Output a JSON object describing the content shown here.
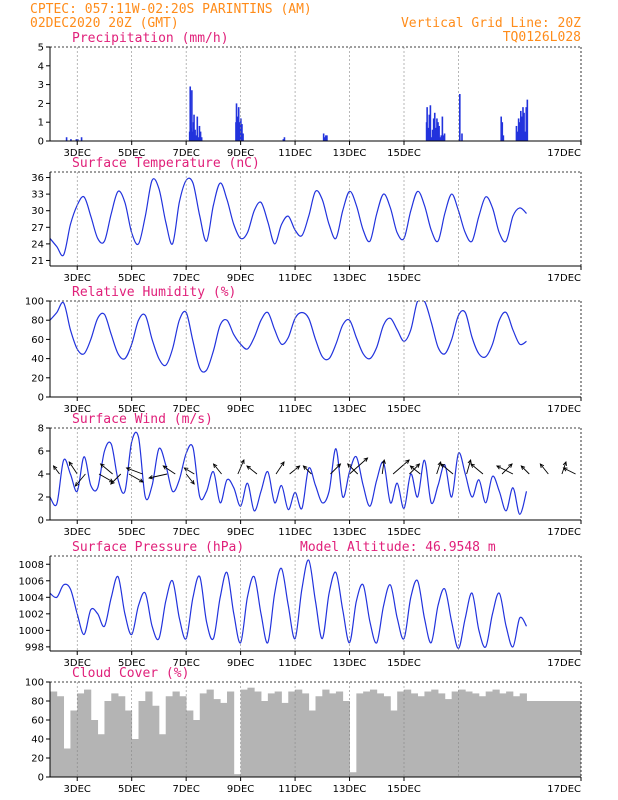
{
  "header": {
    "line1": "CPTEC:   057:11W-02:20S   PARINTINS (AM)",
    "line2": "02DEC2020 20Z (GMT)",
    "grid_note": "Vertical Grid Line: 20Z",
    "code": "TQ0126L028"
  },
  "colors": {
    "header": "#ff8c1a",
    "panel_title": "#e0207a",
    "series": "#2233dd",
    "cloud": "#b4b4b4",
    "grid": "#888888"
  },
  "chart_data": [
    {
      "type": "bar",
      "title": "Precipitation (mm/h)",
      "x_ticks": [
        "3DEC",
        "5DEC",
        "7DEC",
        "9DEC",
        "11DEC",
        "13DEC",
        "15DEC",
        "17DEC"
      ],
      "ylim": [
        0,
        5
      ],
      "yticks": [
        0,
        1,
        2,
        3,
        4,
        5
      ],
      "series": [
        {
          "x": [
            0.58,
            0.74,
            0.94,
            0.99,
            1.13
          ],
          "values": [
            0.2,
            0.1,
            0.1,
            0.1,
            0.2
          ]
        },
        {
          "x": [
            5.1,
            5.12,
            5.14,
            5.16,
            5.18,
            5.2,
            5.22,
            5.24,
            5.26,
            5.3,
            5.34,
            5.38,
            5.42,
            5.46,
            5.5,
            5.54
          ],
          "values": [
            0.5,
            2.9,
            0.7,
            0.6,
            2.7,
            0.4,
            0.5,
            1.0,
            1.4,
            0.6,
            0.3,
            1.3,
            0.2,
            0.8,
            0.5,
            0.2
          ]
        },
        {
          "x": [
            6.8,
            6.82,
            6.84,
            6.86,
            6.9,
            6.94,
            6.98,
            7.02,
            7.06
          ],
          "values": [
            1.0,
            2.0,
            0.6,
            1.3,
            1.8,
            1.0,
            1.2,
            0.9,
            0.4
          ]
        },
        {
          "x": [
            8.54,
            8.58
          ],
          "values": [
            0.1,
            0.2
          ]
        },
        {
          "x": [
            10.02,
            10.06,
            10.1,
            10.14
          ],
          "values": [
            0.4,
            0.2,
            0.3,
            0.3
          ]
        },
        {
          "x": [
            13.8,
            13.82,
            13.86,
            13.9,
            13.94,
            13.98,
            14.02,
            14.06,
            14.1,
            14.14,
            14.18,
            14.22,
            14.26,
            14.3,
            14.34,
            14.38,
            14.42,
            14.46
          ],
          "values": [
            1.0,
            1.8,
            0.7,
            1.4,
            1.9,
            0.2,
            0.6,
            1.2,
            1.5,
            0.7,
            1.2,
            1.0,
            0.8,
            0.2,
            0.3,
            1.3,
            0.3,
            0.4
          ]
        },
        {
          "x": [
            15.02,
            15.1
          ],
          "values": [
            2.5,
            0.4
          ]
        },
        {
          "x": [
            16.54,
            16.58,
            16.62
          ],
          "values": [
            1.3,
            1.0,
            0.3
          ]
        },
        {
          "x": [
            17.1,
            17.14,
            17.18,
            17.22,
            17.26,
            17.3,
            17.34,
            17.38,
            17.42,
            17.46,
            17.5
          ],
          "values": [
            0.8,
            0.5,
            1.2,
            1.0,
            1.6,
            1.3,
            1.8,
            1.5,
            0.5,
            1.8,
            2.2
          ]
        }
      ]
    },
    {
      "type": "line",
      "title": "Surface Temperature (nC)",
      "x_ticks": [
        "3DEC",
        "5DEC",
        "7DEC",
        "9DEC",
        "11DEC",
        "13DEC",
        "15DEC",
        "17DEC"
      ],
      "ylim": [
        20,
        37
      ],
      "yticks": [
        21,
        24,
        27,
        30,
        33,
        36
      ],
      "x": [
        0,
        0.25,
        0.5,
        0.75,
        1,
        1.25,
        1.5,
        1.75,
        2,
        2.25,
        2.5,
        2.75,
        3,
        3.25,
        3.5,
        3.75,
        4,
        4.25,
        4.5,
        4.75,
        5,
        5.25,
        5.5,
        5.75,
        6,
        6.25,
        6.5,
        6.75,
        7,
        7.25,
        7.5,
        7.75,
        8,
        8.25,
        8.5,
        8.75,
        9,
        9.25,
        9.5,
        9.75,
        10,
        10.25,
        10.5,
        10.75,
        11,
        11.25,
        11.5,
        11.75,
        12,
        12.25,
        12.5,
        12.75,
        13,
        13.25,
        13.5,
        13.75,
        14,
        14.25,
        14.5,
        14.75,
        15,
        15.25,
        15.5,
        15.75,
        16,
        16.25,
        16.5,
        16.75,
        17,
        17.25,
        17.5
      ],
      "values": [
        25.0,
        23.5,
        22.0,
        27.5,
        31.0,
        32.5,
        29.0,
        25.0,
        24.5,
        29.5,
        33.5,
        31.5,
        26.0,
        24.0,
        29.0,
        35.5,
        34.0,
        28.0,
        24.0,
        31.5,
        35.5,
        35.0,
        29.0,
        24.5,
        31.0,
        35.0,
        32.0,
        27.5,
        25.0,
        26.0,
        30.0,
        31.5,
        28.0,
        24.0,
        27.5,
        29.0,
        26.5,
        25.5,
        29.0,
        33.5,
        32.0,
        27.5,
        25.0,
        30.0,
        33.5,
        31.0,
        26.5,
        24.5,
        29.5,
        33.0,
        30.5,
        26.0,
        25.0,
        30.0,
        33.5,
        31.0,
        26.5,
        24.5,
        29.5,
        33.0,
        30.0,
        26.0,
        24.5,
        29.0,
        32.5,
        30.5,
        26.0,
        24.5,
        29.0,
        30.5,
        29.5
      ]
    },
    {
      "type": "line",
      "title": "Relative Humidity (%)",
      "x_ticks": [
        "3DEC",
        "5DEC",
        "7DEC",
        "9DEC",
        "11DEC",
        "13DEC",
        "15DEC",
        "17DEC"
      ],
      "ylim": [
        0,
        100
      ],
      "yticks": [
        0,
        20,
        40,
        60,
        80,
        100
      ],
      "x": [
        0,
        0.25,
        0.5,
        0.75,
        1,
        1.25,
        1.5,
        1.75,
        2,
        2.25,
        2.5,
        2.75,
        3,
        3.25,
        3.5,
        3.75,
        4,
        4.25,
        4.5,
        4.75,
        5,
        5.25,
        5.5,
        5.75,
        6,
        6.25,
        6.5,
        6.75,
        7,
        7.25,
        7.5,
        7.75,
        8,
        8.25,
        8.5,
        8.75,
        9,
        9.25,
        9.5,
        9.75,
        10,
        10.25,
        10.5,
        10.75,
        11,
        11.25,
        11.5,
        11.75,
        12,
        12.25,
        12.5,
        12.75,
        13,
        13.25,
        13.5,
        13.75,
        14,
        14.25,
        14.5,
        14.75,
        15,
        15.25,
        15.5,
        15.75,
        16,
        16.25,
        16.5,
        16.75,
        17,
        17.25,
        17.5
      ],
      "values": [
        80,
        88,
        98,
        70,
        50,
        45,
        60,
        82,
        86,
        65,
        45,
        40,
        55,
        80,
        85,
        60,
        40,
        33,
        50,
        80,
        88,
        58,
        30,
        28,
        48,
        75,
        80,
        65,
        55,
        50,
        62,
        80,
        88,
        70,
        55,
        62,
        82,
        88,
        82,
        60,
        42,
        40,
        55,
        75,
        80,
        62,
        45,
        40,
        52,
        75,
        82,
        70,
        58,
        70,
        100,
        100,
        78,
        52,
        45,
        60,
        85,
        88,
        62,
        45,
        42,
        55,
        80,
        88,
        70,
        55,
        58
      ]
    },
    {
      "type": "line",
      "title": "Surface Wind (m/s)",
      "x_ticks": [
        "3DEC",
        "5DEC",
        "7DEC",
        "9DEC",
        "11DEC",
        "13DEC",
        "15DEC",
        "17DEC"
      ],
      "ylim": [
        0,
        8
      ],
      "yticks": [
        0,
        2,
        4,
        6,
        8
      ],
      "x": [
        0,
        0.25,
        0.5,
        0.75,
        1,
        1.25,
        1.5,
        1.75,
        2,
        2.25,
        2.5,
        2.75,
        3,
        3.25,
        3.5,
        3.75,
        4,
        4.25,
        4.5,
        4.75,
        5,
        5.25,
        5.5,
        5.75,
        6,
        6.25,
        6.5,
        6.75,
        7,
        7.25,
        7.5,
        7.75,
        8,
        8.25,
        8.5,
        8.75,
        9,
        9.25,
        9.5,
        9.75,
        10,
        10.25,
        10.5,
        10.75,
        11,
        11.25,
        11.5,
        11.75,
        12,
        12.25,
        12.5,
        12.75,
        13,
        13.25,
        13.5,
        13.75,
        14,
        14.25,
        14.5,
        14.75,
        15,
        15.25,
        15.5,
        15.75,
        16,
        16.25,
        16.5,
        16.75,
        17,
        17.25,
        17.5
      ],
      "values": [
        2.0,
        1.4,
        5.2,
        4.0,
        2.5,
        5.5,
        3.0,
        2.8,
        6.0,
        6.6,
        3.5,
        2.5,
        6.8,
        7.2,
        2.0,
        3.0,
        6.2,
        4.8,
        2.5,
        3.5,
        5.8,
        6.3,
        2.0,
        2.5,
        4.2,
        1.5,
        3.5,
        2.8,
        1.2,
        3.2,
        0.8,
        2.5,
        4.2,
        1.5,
        3.0,
        0.9,
        2.4,
        1.0,
        4.5,
        3.0,
        1.5,
        2.5,
        6.2,
        2.0,
        4.2,
        5.5,
        3.0,
        1.2,
        3.5,
        5.0,
        1.5,
        3.2,
        1.0,
        4.0,
        2.0,
        5.2,
        1.5,
        3.0,
        4.8,
        2.0,
        5.8,
        4.0,
        2.0,
        3.5,
        1.5,
        3.8,
        2.5,
        0.8,
        2.8,
        0.5,
        2.5
      ],
      "arrows": [
        {
          "x": 0.35,
          "dx": -6,
          "dy": -8
        },
        {
          "x": 1.0,
          "dx": -8,
          "dy": -12
        },
        {
          "x": 1.3,
          "dx": -10,
          "dy": 12
        },
        {
          "x": 1.8,
          "dx": 14,
          "dy": 8
        },
        {
          "x": 2.3,
          "dx": -12,
          "dy": -10
        },
        {
          "x": 2.6,
          "dx": -10,
          "dy": 10
        },
        {
          "x": 2.9,
          "dx": 14,
          "dy": 8
        },
        {
          "x": 3.4,
          "dx": -16,
          "dy": -6
        },
        {
          "x": 4.3,
          "dx": -18,
          "dy": 4
        },
        {
          "x": 4.6,
          "dx": -12,
          "dy": -8
        },
        {
          "x": 5.0,
          "dx": 8,
          "dy": 10
        },
        {
          "x": 5.3,
          "dx": -10,
          "dy": -6
        },
        {
          "x": 6.3,
          "dx": -8,
          "dy": -10
        },
        {
          "x": 6.9,
          "dx": 6,
          "dy": -14
        },
        {
          "x": 7.6,
          "dx": -10,
          "dy": -8
        },
        {
          "x": 8.3,
          "dx": 8,
          "dy": -12
        },
        {
          "x": 8.8,
          "dx": 10,
          "dy": -8
        },
        {
          "x": 9.6,
          "dx": -8,
          "dy": -8
        },
        {
          "x": 10.3,
          "dx": 10,
          "dy": -10
        },
        {
          "x": 11.0,
          "dx": 18,
          "dy": -16
        },
        {
          "x": 11.3,
          "dx": -10,
          "dy": -10
        },
        {
          "x": 12.2,
          "dx": 2,
          "dy": -14
        },
        {
          "x": 12.6,
          "dx": 16,
          "dy": -14
        },
        {
          "x": 13.2,
          "dx": 10,
          "dy": -10
        },
        {
          "x": 13.6,
          "dx": -10,
          "dy": -8
        },
        {
          "x": 14.2,
          "dx": 4,
          "dy": -12
        },
        {
          "x": 14.8,
          "dx": -12,
          "dy": -10
        },
        {
          "x": 15.3,
          "dx": 4,
          "dy": -14
        },
        {
          "x": 15.9,
          "dx": -12,
          "dy": -10
        },
        {
          "x": 16.6,
          "dx": 10,
          "dy": -10
        },
        {
          "x": 17.0,
          "dx": -16,
          "dy": -8
        },
        {
          "x": 17.6,
          "dx": -8,
          "dy": -8
        },
        {
          "x": 18.3,
          "dx": -8,
          "dy": -10
        },
        {
          "x": 18.8,
          "dx": 4,
          "dy": -12
        },
        {
          "x": 19.3,
          "dx": -12,
          "dy": -6
        }
      ]
    },
    {
      "type": "line",
      "title": "Surface Pressure (hPa)",
      "annotation": "Model Altitude: 46.9548 m",
      "x_ticks": [
        "3DEC",
        "5DEC",
        "7DEC",
        "9DEC",
        "11DEC",
        "13DEC",
        "15DEC",
        "17DEC"
      ],
      "ylim": [
        997.5,
        1009
      ],
      "yticks": [
        998,
        1000,
        1002,
        1004,
        1006,
        1008
      ],
      "x": [
        0,
        0.25,
        0.5,
        0.75,
        1,
        1.25,
        1.5,
        1.75,
        2,
        2.25,
        2.5,
        2.75,
        3,
        3.25,
        3.5,
        3.75,
        4,
        4.25,
        4.5,
        4.75,
        5,
        5.25,
        5.5,
        5.75,
        6,
        6.25,
        6.5,
        6.75,
        7,
        7.25,
        7.5,
        7.75,
        8,
        8.25,
        8.5,
        8.75,
        9,
        9.25,
        9.5,
        9.75,
        10,
        10.25,
        10.5,
        10.75,
        11,
        11.25,
        11.5,
        11.75,
        12,
        12.25,
        12.5,
        12.75,
        13,
        13.25,
        13.5,
        13.75,
        14,
        14.25,
        14.5,
        14.75,
        15,
        15.25,
        15.5,
        15.75,
        16,
        16.25,
        16.5,
        16.75,
        17,
        17.25,
        17.5
      ],
      "values": [
        1004.5,
        1004.0,
        1005.5,
        1005.0,
        1002.0,
        999.5,
        1002.5,
        1002.0,
        1000.5,
        1004.0,
        1006.5,
        1002.0,
        999.5,
        1003.0,
        1004.5,
        1000.5,
        999.0,
        1003.5,
        1006.0,
        1001.5,
        999.0,
        1004.0,
        1006.5,
        1001.0,
        999.0,
        1004.0,
        1007.0,
        1002.0,
        998.5,
        1004.0,
        1006.5,
        1002.0,
        998.5,
        1004.5,
        1007.5,
        1003.0,
        999.0,
        1005.0,
        1008.5,
        1003.5,
        999.0,
        1004.5,
        1007.0,
        1002.5,
        998.5,
        1003.5,
        1005.5,
        1001.0,
        998.5,
        1003.0,
        1005.5,
        1001.5,
        999.0,
        1004.0,
        1006.0,
        1001.5,
        998.5,
        1003.0,
        1005.0,
        1001.0,
        997.8,
        1001.5,
        1004.5,
        1000.0,
        998.0,
        1002.0,
        1004.5,
        1000.5,
        998.0,
        1001.5,
        1000.5
      ]
    },
    {
      "type": "bar",
      "title": "Cloud Cover (%)",
      "x_ticks": [
        "3DEC",
        "5DEC",
        "7DEC",
        "9DEC",
        "11DEC",
        "13DEC",
        "15DEC",
        "17DEC"
      ],
      "ylim": [
        0,
        100
      ],
      "yticks": [
        0,
        20,
        40,
        60,
        80,
        100
      ],
      "x": [
        0,
        0.25,
        0.5,
        0.75,
        1,
        1.25,
        1.5,
        1.75,
        2,
        2.25,
        2.5,
        2.75,
        3,
        3.25,
        3.5,
        3.75,
        4,
        4.25,
        4.5,
        4.75,
        5,
        5.25,
        5.5,
        5.75,
        6,
        6.25,
        6.5,
        6.75,
        7,
        7.25,
        7.5,
        7.75,
        8,
        8.25,
        8.5,
        8.75,
        9,
        9.25,
        9.5,
        9.75,
        10,
        10.25,
        10.5,
        10.75,
        11,
        11.25,
        11.5,
        11.75,
        12,
        12.25,
        12.5,
        12.75,
        13,
        13.25,
        13.5,
        13.75,
        14,
        14.25,
        14.5,
        14.75,
        15,
        15.25,
        15.5,
        15.75,
        16,
        16.25,
        16.5,
        16.75,
        17,
        17.25,
        17.5
      ],
      "values": [
        90,
        85,
        30,
        70,
        88,
        92,
        60,
        45,
        80,
        88,
        85,
        70,
        40,
        80,
        90,
        75,
        45,
        85,
        90,
        85,
        70,
        60,
        88,
        92,
        82,
        78,
        90,
        3,
        92,
        94,
        90,
        80,
        88,
        90,
        78,
        90,
        92,
        88,
        70,
        85,
        92,
        88,
        90,
        80,
        5,
        88,
        90,
        92,
        88,
        85,
        70,
        90,
        92,
        88,
        85,
        90,
        92,
        88,
        82,
        90,
        92,
        90,
        88,
        85,
        90,
        92,
        88,
        90,
        85,
        88,
        80
      ]
    }
  ]
}
